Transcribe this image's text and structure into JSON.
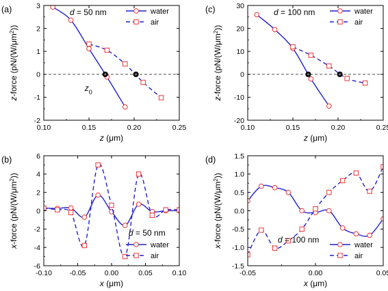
{
  "colors": {
    "water": "#1f1fd0",
    "air": "#1f1fd0",
    "marker": "#ee3333",
    "axis": "#000000",
    "dot": "#111111"
  },
  "chart_data": [
    {
      "type": "line",
      "panel_label": "(a)",
      "annotation": "d = 50 nm",
      "xlabel": "z (μm)",
      "ylabel": "z-force (pN/(W/μm²))",
      "xlim": [
        0.1,
        0.25
      ],
      "ylim": [
        -2,
        3
      ],
      "xticks": [
        0.1,
        0.15,
        0.2,
        0.25
      ],
      "xtick_labels": [
        "0.10",
        "0.15",
        "0.20",
        "0.25"
      ],
      "yticks": [
        -2,
        -1,
        0,
        1,
        2,
        3
      ],
      "ytick_labels": [
        "-2",
        "-1",
        "0",
        "1",
        "2",
        "3"
      ],
      "legend": {
        "placement": "top-right",
        "entries": [
          "water",
          "air"
        ]
      },
      "zero_line": true,
      "point_label": "z0",
      "series": [
        {
          "name": "water",
          "style": "solid",
          "marker": "circle",
          "x": [
            0.11,
            0.13,
            0.15,
            0.17,
            0.19
          ],
          "y": [
            2.93,
            2.36,
            1.12,
            -0.12,
            -1.42
          ]
        },
        {
          "name": "air",
          "style": "dashed",
          "marker": "square",
          "x": [
            0.15,
            0.17,
            0.19,
            0.21,
            0.23
          ],
          "y": [
            1.32,
            1.05,
            0.45,
            -0.35,
            -1.02
          ]
        }
      ],
      "equilibrium_points": [
        {
          "x": 0.168,
          "y": 0
        },
        {
          "x": 0.202,
          "y": 0
        }
      ]
    },
    {
      "type": "line",
      "panel_label": "(c)",
      "annotation": "d = 100 nm",
      "xlabel": "z (μm)",
      "ylabel": "z-force (pN/(W/μm²))",
      "xlim": [
        0.1,
        0.25
      ],
      "ylim": [
        -20,
        30
      ],
      "xticks": [
        0.1,
        0.15,
        0.2,
        0.25
      ],
      "xtick_labels": [
        "0.10",
        "0.15",
        "0.20",
        "0.25"
      ],
      "yticks": [
        -20,
        -10,
        0,
        10,
        20,
        30
      ],
      "ytick_labels": [
        "-20",
        "-10",
        "0",
        "10",
        "20",
        "30"
      ],
      "legend": {
        "placement": "top-right",
        "entries": [
          "water",
          "air"
        ]
      },
      "zero_line": true,
      "series": [
        {
          "name": "water",
          "style": "solid",
          "marker": "circle",
          "x": [
            0.11,
            0.13,
            0.15,
            0.17,
            0.19
          ],
          "y": [
            26,
            19.5,
            11.3,
            -2,
            -13.8
          ]
        },
        {
          "name": "air",
          "style": "dashed",
          "marker": "square",
          "x": [
            0.15,
            0.17,
            0.19,
            0.21,
            0.23
          ],
          "y": [
            12,
            8.3,
            3.6,
            -1.8,
            -3.8
          ]
        }
      ],
      "equilibrium_points": [
        {
          "x": 0.167,
          "y": 0
        },
        {
          "x": 0.202,
          "y": 0
        }
      ]
    },
    {
      "type": "line",
      "panel_label": "(b)",
      "annotation": "d = 50 nm",
      "xlabel": "x (μm)",
      "ylabel": "x-force (pN/(W/μm²))",
      "xlim": [
        -0.1,
        0.1
      ],
      "ylim": [
        -6,
        6
      ],
      "xticks": [
        -0.1,
        -0.05,
        0.0,
        0.05,
        0.1
      ],
      "xtick_labels": [
        "-0.10",
        "-0.05",
        "0.00",
        "0.05",
        "0.10"
      ],
      "yticks": [
        -6,
        -4,
        -2,
        0,
        2,
        4,
        6
      ],
      "ytick_labels": [
        "-6",
        "-4",
        "-2",
        "0",
        "2",
        "4",
        "6"
      ],
      "legend": {
        "placement": "bottom-right",
        "entries": [
          "water",
          "air"
        ]
      },
      "zero_line": false,
      "series": [
        {
          "name": "water",
          "style": "solid",
          "marker": "circle",
          "x": [
            -0.1,
            -0.08,
            -0.06,
            -0.04,
            -0.02,
            0.0,
            0.02,
            0.04,
            0.06,
            0.08,
            0.1
          ],
          "y": [
            0.3,
            0.25,
            0.3,
            -0.7,
            1.7,
            -0.1,
            -1.6,
            0.7,
            -0.1,
            0.0,
            0.0
          ]
        },
        {
          "name": "air",
          "style": "dashed",
          "marker": "square",
          "x": [
            -0.1,
            -0.08,
            -0.06,
            -0.04,
            -0.02,
            0.0,
            0.02,
            0.04,
            0.06,
            0.08,
            0.1
          ],
          "y": [
            0.3,
            0.1,
            -0.2,
            -3.8,
            5.0,
            0.6,
            -5.0,
            4.0,
            -0.5,
            0.1,
            0.1
          ]
        }
      ]
    },
    {
      "type": "line",
      "panel_label": "(d)",
      "annotation": "d = 100 nm",
      "xlabel": "x (μm)",
      "ylabel": "x-force (pN/(W/μm²))",
      "xlim": [
        -0.05,
        0.05
      ],
      "ylim": [
        -1.5,
        1.5
      ],
      "xticks": [
        -0.05,
        0.0,
        0.05
      ],
      "xtick_labels": [
        "-0.05",
        "0.00",
        "0.05"
      ],
      "yticks": [
        -1.5,
        -1.0,
        -0.5,
        0.0,
        0.5,
        1.0,
        1.5
      ],
      "ytick_labels": [
        "-1.5",
        "-1.0",
        "-0.5",
        "0.0",
        "0.5",
        "1.0",
        "1.5"
      ],
      "legend": {
        "placement": "bottom-right",
        "entries": [
          "water",
          "air"
        ]
      },
      "zero_line": false,
      "series": [
        {
          "name": "water",
          "style": "solid",
          "marker": "circle",
          "x": [
            -0.05,
            -0.04,
            -0.03,
            -0.02,
            -0.01,
            0.0,
            0.01,
            0.02,
            0.03,
            0.04,
            0.05
          ],
          "y": [
            0.27,
            0.67,
            0.63,
            0.5,
            0.0,
            -0.05,
            0.0,
            -0.47,
            -0.63,
            -0.67,
            -0.22
          ]
        },
        {
          "name": "air",
          "style": "dashed",
          "marker": "square",
          "x": [
            -0.05,
            -0.04,
            -0.03,
            -0.02,
            -0.01,
            0.0,
            0.01,
            0.02,
            0.03,
            0.04,
            0.05
          ],
          "y": [
            -1.2,
            -0.53,
            -1.02,
            -0.82,
            -0.5,
            0.05,
            0.5,
            0.82,
            1.03,
            0.53,
            1.2
          ]
        }
      ]
    }
  ]
}
